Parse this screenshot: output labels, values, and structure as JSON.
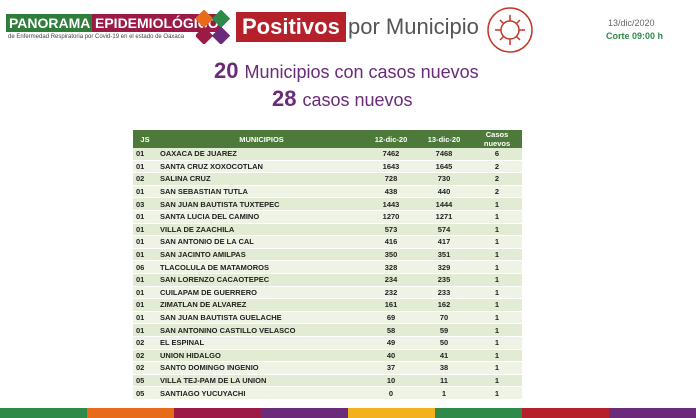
{
  "header": {
    "brand_1": "PANORAMA",
    "brand_2": "EPIDEMIOLÓGICO",
    "brand_sub": "de Enfermedad Respiratoria por Covid-19 en el estado de Oaxaca",
    "title_badge": "Positivos",
    "title_rest": "por Municipio",
    "date": "13/dic/2020",
    "cut": "Corte 09:00 h"
  },
  "summary": {
    "municipios_count": 20,
    "municipios_text": "Municipios con casos nuevos",
    "cases_count": 28,
    "cases_text": "casos nuevos"
  },
  "table": {
    "columns": [
      "JS",
      "MUNICIPIOS",
      "12-dic-20",
      "13-dic-20",
      "Casos nuevos"
    ],
    "rows": [
      [
        "01",
        "OAXACA DE JUAREZ",
        7462,
        7468,
        6
      ],
      [
        "01",
        "SANTA CRUZ XOXOCOTLAN",
        1643,
        1645,
        2
      ],
      [
        "02",
        "SALINA CRUZ",
        728,
        730,
        2
      ],
      [
        "01",
        "SAN SEBASTIAN TUTLA",
        438,
        440,
        2
      ],
      [
        "03",
        "SAN JUAN BAUTISTA TUXTEPEC",
        1443,
        1444,
        1
      ],
      [
        "01",
        "SANTA LUCIA DEL CAMINO",
        1270,
        1271,
        1
      ],
      [
        "01",
        "VILLA DE ZAACHILA",
        573,
        574,
        1
      ],
      [
        "01",
        "SAN ANTONIO DE LA CAL",
        416,
        417,
        1
      ],
      [
        "01",
        "SAN JACINTO AMILPAS",
        350,
        351,
        1
      ],
      [
        "06",
        "TLACOLULA DE MATAMOROS",
        328,
        329,
        1
      ],
      [
        "01",
        "SAN LORENZO CACAOTEPEC",
        234,
        235,
        1
      ],
      [
        "01",
        "CUILAPAM DE GUERRERO",
        232,
        233,
        1
      ],
      [
        "01",
        "ZIMATLAN DE ALVAREZ",
        161,
        162,
        1
      ],
      [
        "01",
        "SAN JUAN BAUTISTA GUELACHE",
        69,
        70,
        1
      ],
      [
        "01",
        "SAN ANTONINO CASTILLO VELASCO",
        58,
        59,
        1
      ],
      [
        "02",
        "EL ESPINAL",
        49,
        50,
        1
      ],
      [
        "02",
        "UNION HIDALGO",
        40,
        41,
        1
      ],
      [
        "02",
        "SANTO DOMINGO INGENIO",
        37,
        38,
        1
      ],
      [
        "05",
        "VILLA TEJ-PAM DE LA UNION",
        10,
        11,
        1
      ],
      [
        "05",
        "SANTIAGO YUCUYACHI",
        0,
        1,
        1
      ]
    ]
  }
}
